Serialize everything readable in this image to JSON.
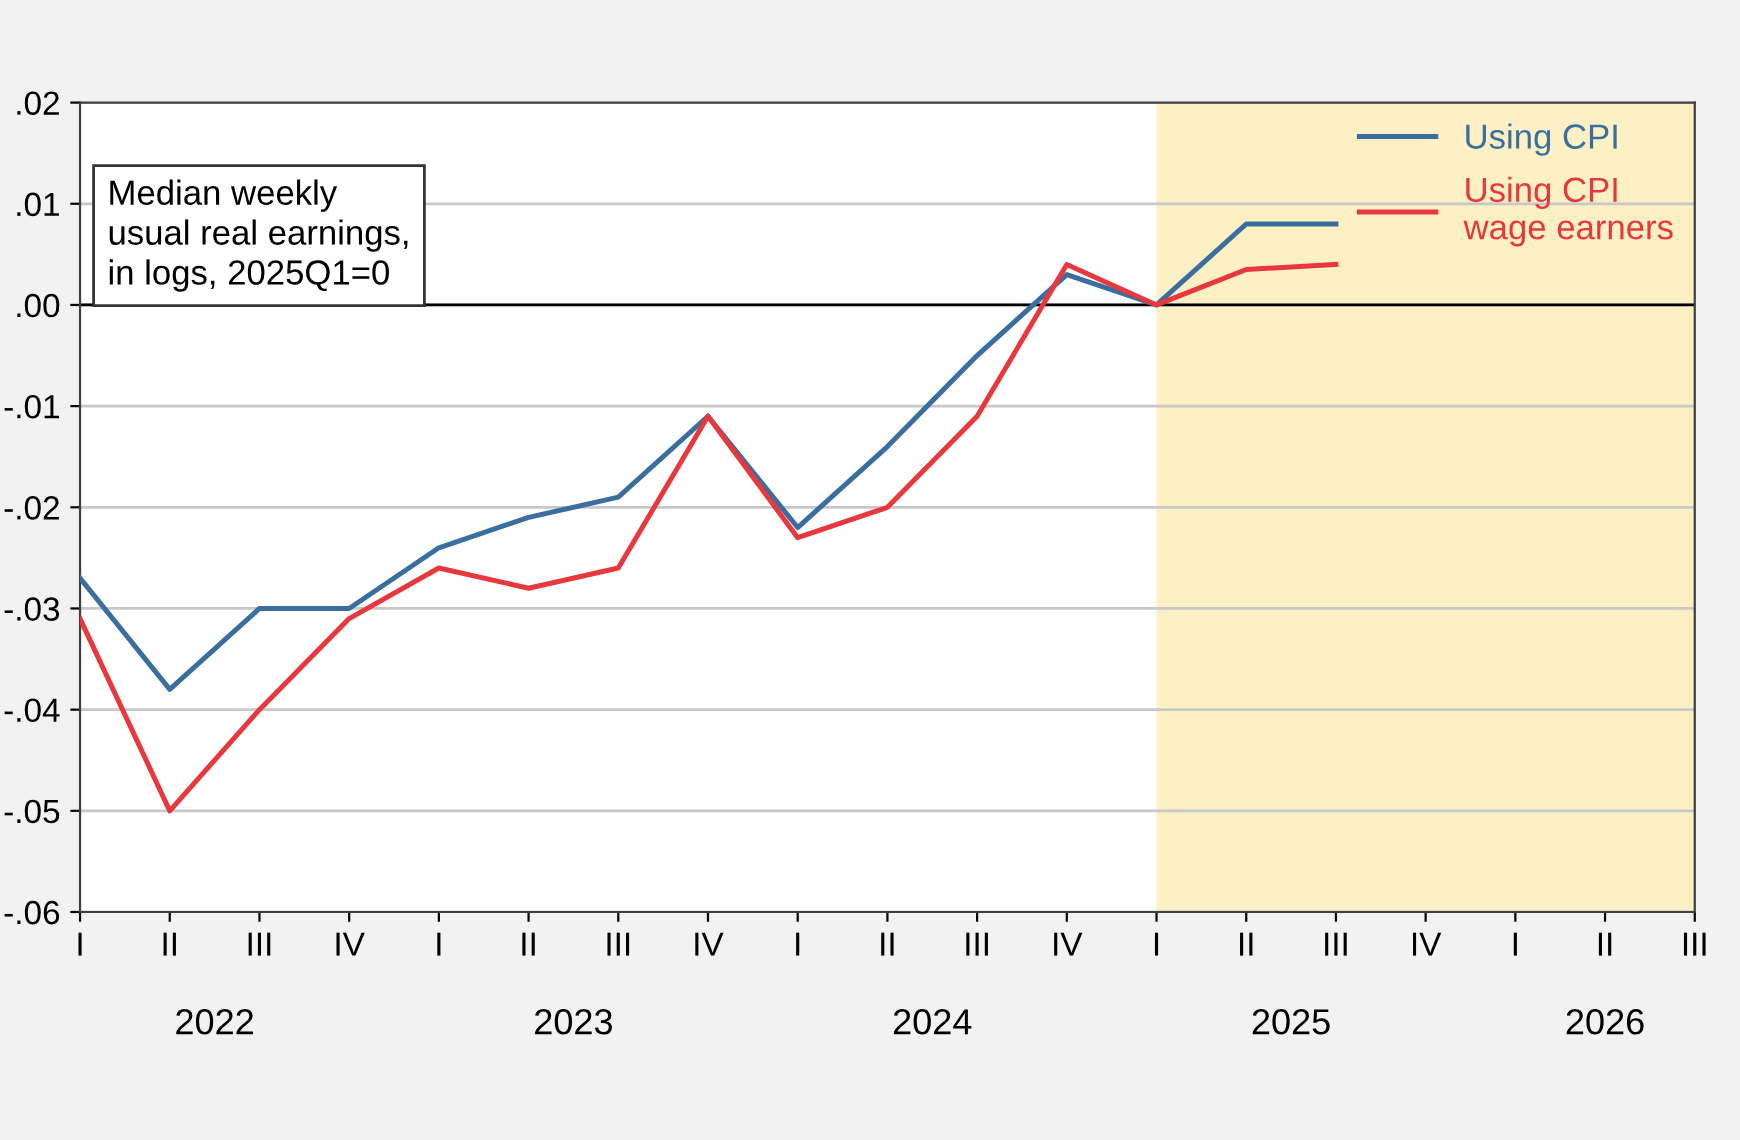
{
  "chart_data": {
    "type": "line",
    "title": "Median weekly\nusual real earnings,\nin logs, 2025Q1=0",
    "categories": [
      "I",
      "II",
      "III",
      "IV",
      "I",
      "II",
      "III",
      "IV",
      "I",
      "II",
      "III",
      "IV",
      "I",
      "II",
      "III",
      "IV",
      "I",
      "II",
      "III"
    ],
    "series": [
      {
        "name": "Using CPI",
        "color": "#3a6e9f",
        "values": [
          -0.027,
          -0.038,
          -0.03,
          -0.03,
          -0.024,
          -0.021,
          -0.019,
          -0.011,
          -0.022,
          -0.014,
          -0.005,
          0.003,
          0.0,
          0.008,
          0.008,
          null,
          null,
          null,
          null
        ]
      },
      {
        "name": "Using CPI\nwage earners",
        "color": "#e8383d",
        "values": [
          -0.031,
          -0.05,
          -0.04,
          -0.031,
          -0.026,
          -0.028,
          -0.026,
          -0.011,
          -0.023,
          -0.02,
          -0.011,
          0.004,
          0.0,
          0.0035,
          0.004,
          null,
          null,
          null,
          null
        ]
      }
    ],
    "ylim": [
      -0.06,
      0.02
    ],
    "yticks": [
      {
        "value": 0.02,
        "label": ".02"
      },
      {
        "value": 0.01,
        "label": ".01"
      },
      {
        "value": 0.0,
        "label": ".00"
      },
      {
        "value": -0.01,
        "label": "-.01"
      },
      {
        "value": -0.02,
        "label": "-.02"
      },
      {
        "value": -0.03,
        "label": "-.03"
      },
      {
        "value": -0.04,
        "label": "-.04"
      },
      {
        "value": -0.05,
        "label": "-.05"
      },
      {
        "value": -0.06,
        "label": "-.06"
      }
    ],
    "ref_lines": [
      {
        "axis": "y",
        "value": 0,
        "color": "#000000"
      }
    ],
    "annotations": [
      "2022",
      "2023",
      "2024",
      "2025",
      "2026"
    ],
    "grid": "y",
    "legend": "top right"
  }
}
